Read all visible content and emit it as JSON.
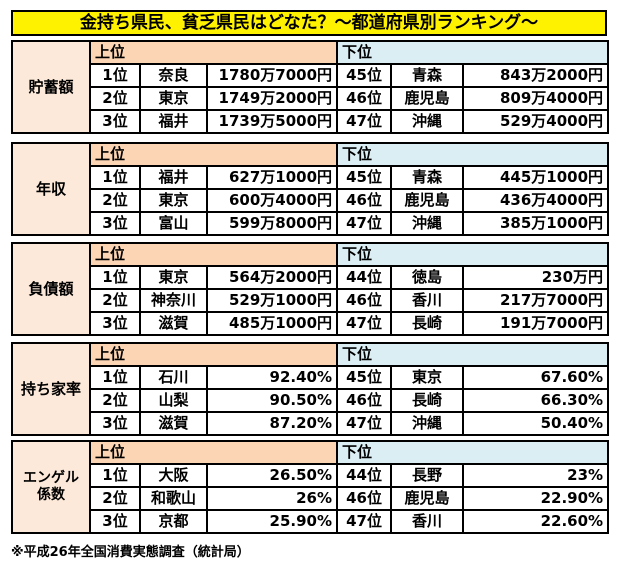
{
  "title": "金持ち県民、貧乏県民はどなた？～都道府県別ランキング～",
  "sections": [
    {
      "label": "貯蓄額",
      "top_label": "上位",
      "bottom_label": "下位",
      "rows": [
        {
          "top_rank": "1位",
          "top_pref": "奈良",
          "top_value": "1780万7000円",
          "bottom_rank": "45位",
          "bottom_pref": "青森",
          "bottom_value": "843万2000円"
        },
        {
          "top_rank": "2位",
          "top_pref": "東京",
          "top_value": "1749万2000円",
          "bottom_rank": "46位",
          "bottom_pref": "鹿児島",
          "bottom_value": "809万4000円"
        },
        {
          "top_rank": "3位",
          "top_pref": "福井",
          "top_value": "1739万5000円",
          "bottom_rank": "47位",
          "bottom_pref": "沖縄",
          "bottom_value": "529万4000円"
        }
      ]
    },
    {
      "label": "年収",
      "top_label": "上位",
      "bottom_label": "下位",
      "rows": [
        {
          "top_rank": "1位",
          "top_pref": "福井",
          "top_value": "627万1000円",
          "bottom_rank": "45位",
          "bottom_pref": "青森",
          "bottom_value": "445万1000円"
        },
        {
          "top_rank": "2位",
          "top_pref": "東京",
          "top_value": "600万4000円",
          "bottom_rank": "46位",
          "bottom_pref": "鹿児島",
          "bottom_value": "436万4000円"
        },
        {
          "top_rank": "3位",
          "top_pref": "富山",
          "top_value": "599万8000円",
          "bottom_rank": "47位",
          "bottom_pref": "沖縄",
          "bottom_value": "385万1000円"
        }
      ]
    },
    {
      "label": "負債額",
      "top_label": "上位",
      "bottom_label": "下位",
      "rows": [
        {
          "top_rank": "1位",
          "top_pref": "東京",
          "top_value": "564万2000円",
          "bottom_rank": "44位",
          "bottom_pref": "徳島",
          "bottom_value": "230万円"
        },
        {
          "top_rank": "2位",
          "top_pref": "神奈川",
          "top_value": "529万1000円",
          "bottom_rank": "46位",
          "bottom_pref": "香川",
          "bottom_value": "217万7000円"
        },
        {
          "top_rank": "3位",
          "top_pref": "滋賀",
          "top_value": "485万1000円",
          "bottom_rank": "47位",
          "bottom_pref": "長崎",
          "bottom_value": "191万7000円"
        }
      ]
    },
    {
      "label": "持ち家率",
      "top_label": "上位",
      "bottom_label": "下位",
      "rows": [
        {
          "top_rank": "1位",
          "top_pref": "石川",
          "top_value": "92.40%",
          "bottom_rank": "45位",
          "bottom_pref": "東京",
          "bottom_value": "67.60%"
        },
        {
          "top_rank": "2位",
          "top_pref": "山梨",
          "top_value": "90.50%",
          "bottom_rank": "46位",
          "bottom_pref": "長崎",
          "bottom_value": "66.30%"
        },
        {
          "top_rank": "3位",
          "top_pref": "滋賀",
          "top_value": "87.20%",
          "bottom_rank": "47位",
          "bottom_pref": "沖縄",
          "bottom_value": "50.40%"
        }
      ]
    },
    {
      "label": "エンゲル係数",
      "top_label": "上位",
      "bottom_label": "下位",
      "rows": [
        {
          "top_rank": "1位",
          "top_pref": "大阪",
          "top_value": "26.50%",
          "bottom_rank": "44位",
          "bottom_pref": "長野",
          "bottom_value": "23%"
        },
        {
          "top_rank": "2位",
          "top_pref": "和歌山",
          "top_value": "26%",
          "bottom_rank": "46位",
          "bottom_pref": "鹿児島",
          "bottom_value": "22.90%"
        },
        {
          "top_rank": "3位",
          "top_pref": "京都",
          "top_value": "25.90%",
          "bottom_rank": "47位",
          "bottom_pref": "香川",
          "bottom_value": "22.60%"
        }
      ]
    }
  ],
  "footnote": "※平成26年全国消費実態調査（統計局）",
  "colors": {
    "title_bg": "#fff200",
    "category_bg": "#fde9d9",
    "top_header_bg": "#fcd5b4",
    "bottom_header_bg": "#daeef3"
  }
}
